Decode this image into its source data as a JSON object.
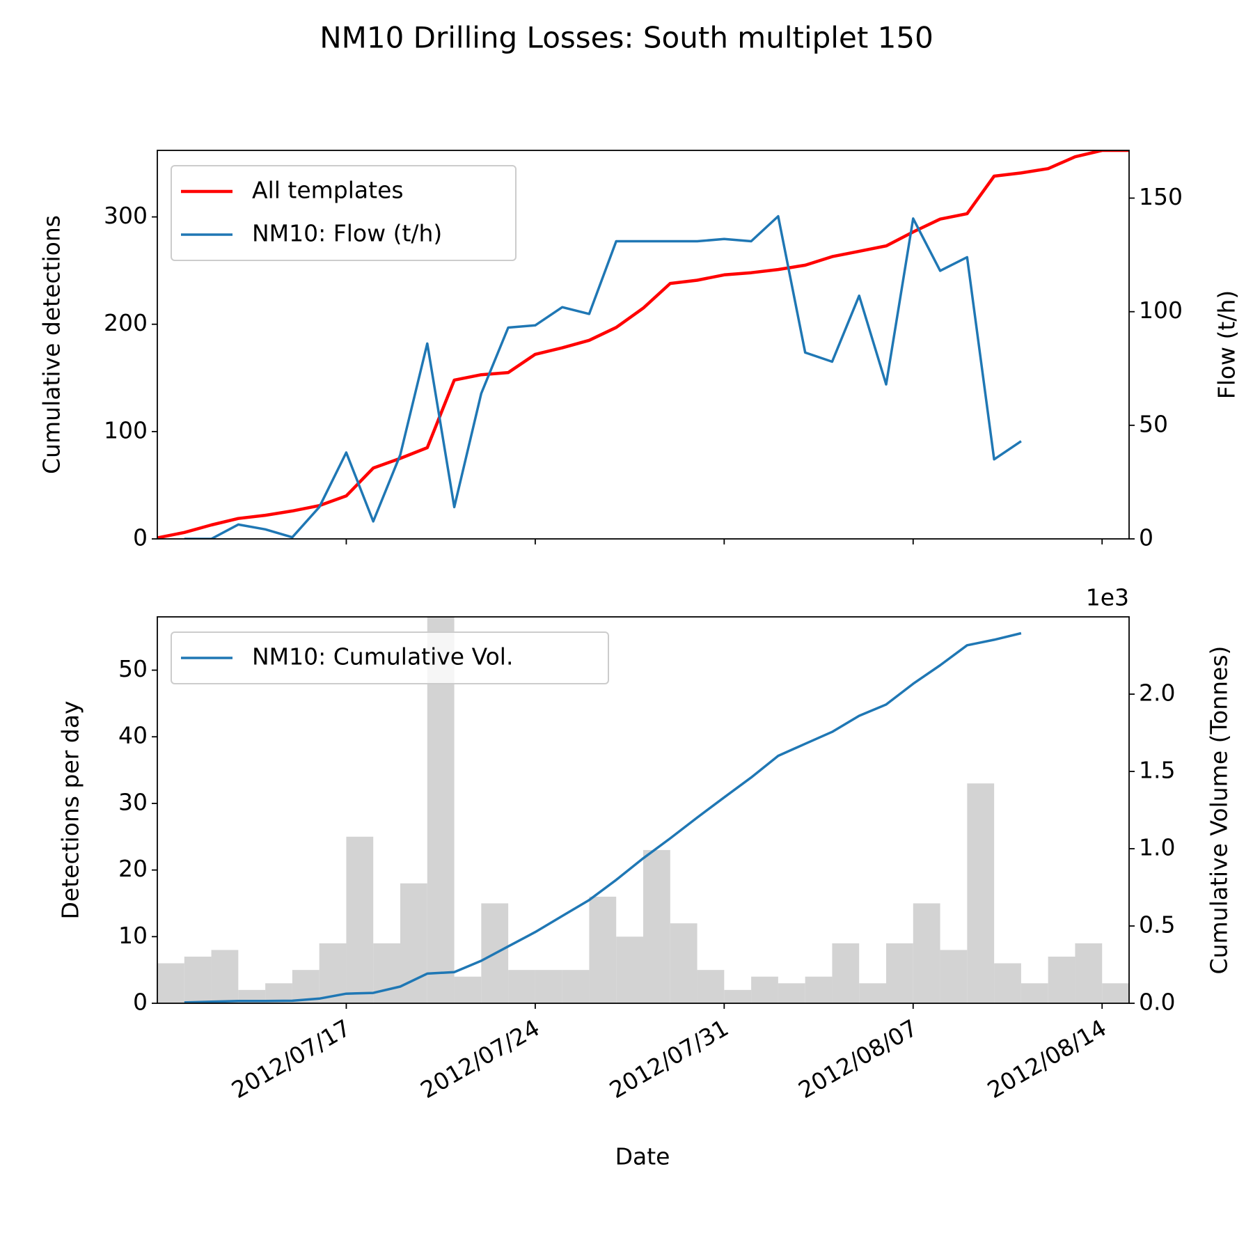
{
  "title": "NM10 Drilling Losses: South multiplet 150",
  "chart_data": [
    {
      "type": "line",
      "ylabel": "Cumulative detections",
      "y2label": "Flow (t/h)",
      "xlim": [
        "2012/07/10",
        "2012/08/15"
      ],
      "ylim": [
        0,
        362
      ],
      "yticks": [
        0,
        100,
        200,
        300
      ],
      "y2lim": [
        0,
        171
      ],
      "y2ticks": [
        0,
        50,
        100,
        150
      ],
      "legend": "upper left",
      "series": [
        {
          "name": "All templates",
          "color": "#ff0000",
          "axis": "y",
          "x": [
            "2012/07/10",
            "2012/07/11",
            "2012/07/12",
            "2012/07/13",
            "2012/07/14",
            "2012/07/15",
            "2012/07/16",
            "2012/07/17",
            "2012/07/18",
            "2012/07/19",
            "2012/07/20",
            "2012/07/21",
            "2012/07/22",
            "2012/07/23",
            "2012/07/24",
            "2012/07/25",
            "2012/07/26",
            "2012/07/27",
            "2012/07/28",
            "2012/07/29",
            "2012/07/30",
            "2012/07/31",
            "2012/08/01",
            "2012/08/02",
            "2012/08/03",
            "2012/08/04",
            "2012/08/05",
            "2012/08/06",
            "2012/08/07",
            "2012/08/08",
            "2012/08/09",
            "2012/08/10",
            "2012/08/11",
            "2012/08/12",
            "2012/08/13",
            "2012/08/14",
            "2012/08/15"
          ],
          "values": [
            1,
            6,
            13,
            19,
            22,
            26,
            31,
            40,
            66,
            75,
            85,
            148,
            153,
            155,
            172,
            178,
            185,
            197,
            215,
            238,
            241,
            246,
            248,
            251,
            255,
            263,
            268,
            273,
            286,
            298,
            303,
            338,
            341,
            345,
            356,
            362,
            362
          ]
        },
        {
          "name": "NM10: Flow (t/h)",
          "color": "#1f77b4",
          "axis": "y2",
          "x": [
            "2012/07/11",
            "2012/07/12",
            "2012/07/13",
            "2012/07/14",
            "2012/07/15",
            "2012/07/16",
            "2012/07/17",
            "2012/07/18",
            "2012/07/19",
            "2012/07/20",
            "2012/07/21",
            "2012/07/22",
            "2012/07/23",
            "2012/07/24",
            "2012/07/25",
            "2012/07/26",
            "2012/07/27",
            "2012/07/28",
            "2012/07/29",
            "2012/07/30",
            "2012/07/31",
            "2012/08/01",
            "2012/08/02",
            "2012/08/03",
            "2012/08/04",
            "2012/08/05",
            "2012/08/06",
            "2012/08/07",
            "2012/08/08",
            "2012/08/09",
            "2012/08/10",
            "2012/08/11"
          ],
          "values": [
            0,
            0,
            6.3,
            4.2,
            0.7,
            14,
            38,
            7.7,
            37,
            86,
            14,
            64,
            93,
            94,
            102,
            99,
            131,
            131,
            131,
            131,
            132,
            131,
            142,
            82,
            78,
            107,
            68,
            141,
            118,
            124,
            35,
            43
          ]
        }
      ]
    },
    {
      "type": "histogram",
      "xlabel": "Date",
      "ylabel": "Detections per day",
      "y2label": "Cumulative Volume (Tonnes)",
      "xlim": [
        "2012/07/10",
        "2012/08/15"
      ],
      "xticks": [
        "2012/07/17",
        "2012/07/24",
        "2012/07/31",
        "2012/08/07",
        "2012/08/14"
      ],
      "ylim": [
        0,
        58
      ],
      "yticks": [
        0,
        10,
        20,
        30,
        40,
        50
      ],
      "y2lim": [
        0,
        2500
      ],
      "y2ticks": [
        {
          "value": 0,
          "label": "0.0"
        },
        {
          "value": 500,
          "label": "0.5"
        },
        {
          "value": 1000,
          "label": "1.0"
        },
        {
          "value": 1500,
          "label": "1.5"
        },
        {
          "value": 2000,
          "label": "2.0"
        }
      ],
      "y2_offset_label": "1e3",
      "legend": "upper left",
      "color": "#d3d3d3",
      "bins": [
        "2012/07/10",
        "2012/07/11",
        "2012/07/12",
        "2012/07/13",
        "2012/07/14",
        "2012/07/15",
        "2012/07/16",
        "2012/07/17",
        "2012/07/18",
        "2012/07/19",
        "2012/07/20",
        "2012/07/21",
        "2012/07/22",
        "2012/07/23",
        "2012/07/24",
        "2012/07/25",
        "2012/07/26",
        "2012/07/27",
        "2012/07/28",
        "2012/07/29",
        "2012/07/30",
        "2012/07/31",
        "2012/08/01",
        "2012/08/02",
        "2012/08/03",
        "2012/08/04",
        "2012/08/05",
        "2012/08/06",
        "2012/08/07",
        "2012/08/08",
        "2012/08/09",
        "2012/08/10",
        "2012/08/11",
        "2012/08/12",
        "2012/08/13",
        "2012/08/14",
        "2012/08/15"
      ],
      "values": [
        6,
        7,
        8,
        2,
        3,
        5,
        9,
        25,
        9,
        18,
        62,
        4,
        15,
        5,
        5,
        5,
        16,
        10,
        23,
        12,
        5,
        2,
        4,
        3,
        4,
        9,
        3,
        9,
        15,
        8,
        33,
        6,
        3,
        7,
        9,
        3
      ],
      "series": [
        {
          "name": "NM10: Cumulative Vol.",
          "color": "#1f77b4",
          "axis": "y2",
          "x": [
            "2012/07/11",
            "2012/07/12",
            "2012/07/13",
            "2012/07/14",
            "2012/07/15",
            "2012/07/16",
            "2012/07/17",
            "2012/07/18",
            "2012/07/19",
            "2012/07/20",
            "2012/07/21",
            "2012/07/22",
            "2012/07/23",
            "2012/07/24",
            "2012/07/25",
            "2012/07/26",
            "2012/07/27",
            "2012/07/28",
            "2012/07/29",
            "2012/07/30",
            "2012/07/31",
            "2012/08/01",
            "2012/08/02",
            "2012/08/03",
            "2012/08/04",
            "2012/08/05",
            "2012/08/06",
            "2012/08/07",
            "2012/08/08",
            "2012/08/09",
            "2012/08/10",
            "2012/08/11"
          ],
          "values": [
            5,
            10,
            15,
            15,
            16,
            30,
            62,
            67,
            108,
            192,
            202,
            275,
            368,
            461,
            565,
            668,
            798,
            938,
            1067,
            1202,
            1332,
            1461,
            1601,
            1679,
            1756,
            1860,
            1933,
            2067,
            2187,
            2316,
            2352,
            2394
          ]
        }
      ]
    }
  ]
}
